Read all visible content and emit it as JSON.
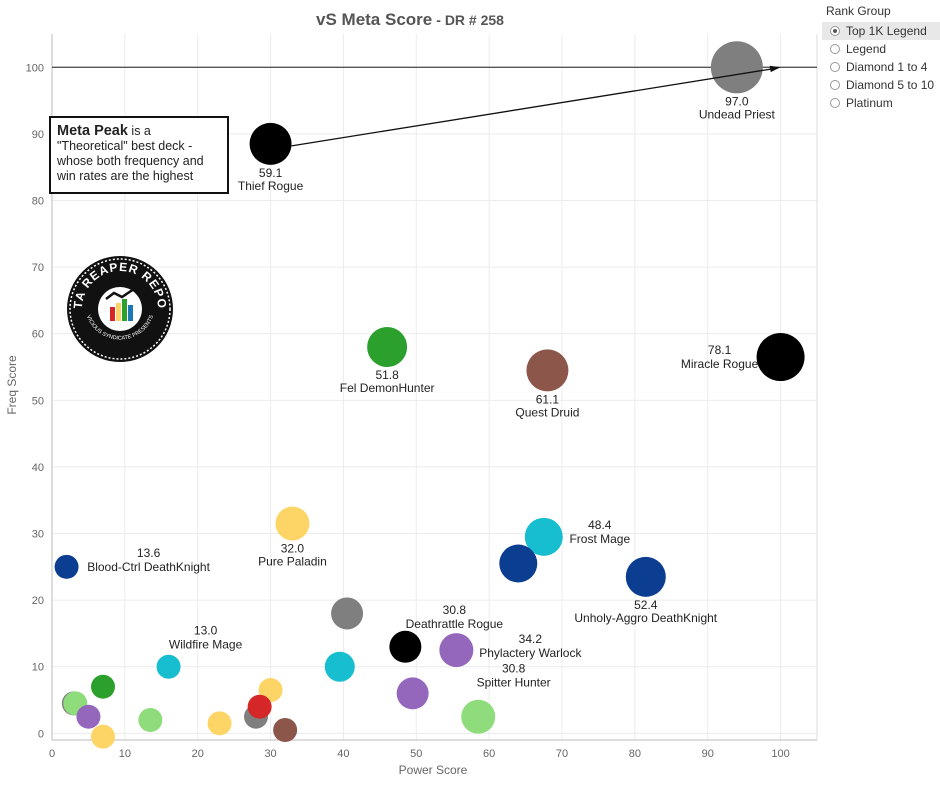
{
  "chart_data": {
    "type": "scatter",
    "title": "vS Meta Score",
    "subtitle": "DR # 258",
    "xlabel": "Power Score",
    "ylabel": "Freq Score",
    "xlim": [
      0,
      105
    ],
    "ylim": [
      -1,
      105
    ],
    "xticks": [
      "0",
      "10",
      "20",
      "30",
      "40",
      "50",
      "60",
      "70",
      "80",
      "90",
      "100"
    ],
    "yticks": [
      "0",
      "10",
      "20",
      "30",
      "40",
      "50",
      "60",
      "70",
      "80",
      "90",
      "100"
    ],
    "reference_line_y": 100,
    "grid": true,
    "colors": {
      "gray": "#7f7f7f",
      "black": "#000000",
      "green": "#2ca02c",
      "brown": "#8c564b",
      "yellow": "#fdd566",
      "teal": "#17becf",
      "navy": "#0b3d91",
      "purple": "#9467bd",
      "lightgreen": "#8fdc7c",
      "red": "#d62728"
    },
    "points": [
      {
        "x": 94,
        "y": 100,
        "color": "gray",
        "score": "97.0",
        "name": "Undead Priest"
      },
      {
        "x": 30,
        "y": 88.5,
        "color": "black",
        "score": "59.1",
        "name": "Thief Rogue"
      },
      {
        "x": 100,
        "y": 56.5,
        "color": "black",
        "score": "78.1",
        "name": "Miracle Rogue"
      },
      {
        "x": 46,
        "y": 58,
        "color": "green",
        "score": "51.8",
        "name": "Fel DemonHunter"
      },
      {
        "x": 68,
        "y": 54.5,
        "color": "brown",
        "score": "61.1",
        "name": "Quest Druid"
      },
      {
        "x": 33,
        "y": 31.5,
        "color": "yellow",
        "score": "32.0",
        "name": "Pure Paladin"
      },
      {
        "x": 67.5,
        "y": 29.5,
        "color": "teal",
        "score": "48.4",
        "name": "Frost Mage"
      },
      {
        "x": 64,
        "y": 25.5,
        "color": "navy",
        "score": "",
        "name": ""
      },
      {
        "x": 81.5,
        "y": 23.5,
        "color": "navy",
        "score": "52.4",
        "name": "Unholy-Aggro DeathKnight"
      },
      {
        "x": 2,
        "y": 25,
        "color": "navy",
        "score": "13.6",
        "name": "Blood-Ctrl DeathKnight"
      },
      {
        "x": 40.5,
        "y": 18,
        "color": "gray",
        "score": "",
        "name": ""
      },
      {
        "x": 48.5,
        "y": 13,
        "color": "black",
        "score": "30.8",
        "name": "Deathrattle Rogue"
      },
      {
        "x": 55.5,
        "y": 12.5,
        "color": "purple",
        "score": "34.2",
        "name": "Phylactery Warlock"
      },
      {
        "x": 16,
        "y": 10,
        "color": "teal",
        "score": "13.0",
        "name": "Wildfire Mage"
      },
      {
        "x": 39.5,
        "y": 10,
        "color": "teal",
        "score": "",
        "name": ""
      },
      {
        "x": 49.5,
        "y": 6,
        "color": "purple",
        "score": "30.8",
        "name": "Spitter Hunter"
      },
      {
        "x": 58.5,
        "y": 2.5,
        "color": "lightgreen",
        "score": "",
        "name": ""
      },
      {
        "x": 30,
        "y": 6.5,
        "color": "yellow",
        "score": "",
        "name": ""
      },
      {
        "x": 28,
        "y": 2.5,
        "color": "gray",
        "score": "",
        "name": ""
      },
      {
        "x": 28.5,
        "y": 4,
        "color": "red",
        "score": "",
        "name": ""
      },
      {
        "x": 32,
        "y": 0.5,
        "color": "brown",
        "score": "",
        "name": ""
      },
      {
        "x": 23,
        "y": 1.5,
        "color": "yellow",
        "score": "",
        "name": ""
      },
      {
        "x": 13.5,
        "y": 2,
        "color": "lightgreen",
        "score": "",
        "name": ""
      },
      {
        "x": 7,
        "y": 7,
        "color": "green",
        "score": "",
        "name": ""
      },
      {
        "x": 3,
        "y": 4.5,
        "color": "gray",
        "score": "",
        "name": ""
      },
      {
        "x": 3.2,
        "y": 4.5,
        "color": "lightgreen",
        "score": "",
        "name": ""
      },
      {
        "x": 5,
        "y": 2.5,
        "color": "purple",
        "score": "",
        "name": ""
      },
      {
        "x": 7,
        "y": -0.5,
        "color": "yellow",
        "score": "",
        "name": ""
      }
    ]
  },
  "annotation": {
    "bold": "Meta Peak",
    "rest": " is a \"Theoretical\" best deck - whose both frequency and win rates are the highest"
  },
  "logo": {
    "top_text": "DATA REAPER REPORT",
    "bottom_text": "VICIOUS SYNDICATE PRESENTS"
  },
  "legend": {
    "title": "Rank Group",
    "items": [
      "Top 1K Legend",
      "Legend",
      "Diamond 1 to 4",
      "Diamond 5 to 10",
      "Platinum"
    ],
    "selected": "Top 1K Legend"
  }
}
